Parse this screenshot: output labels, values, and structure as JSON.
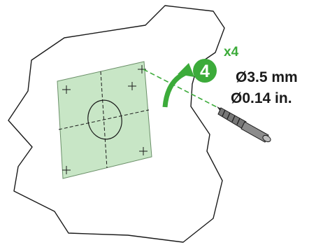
{
  "step": {
    "number": "4",
    "multiplier": "x4"
  },
  "drill": {
    "diameter_mm": "Ø3.5 mm",
    "diameter_in": "Ø0.14 in."
  },
  "colors": {
    "accent_green": "#3cab3a",
    "template_fill": "#c8e6c6",
    "outline": "#1a1a1a",
    "background": "#ffffff"
  },
  "icons": [
    "rotation-arrow-icon",
    "drill-bit-icon",
    "crosshair-mark-icon"
  ]
}
